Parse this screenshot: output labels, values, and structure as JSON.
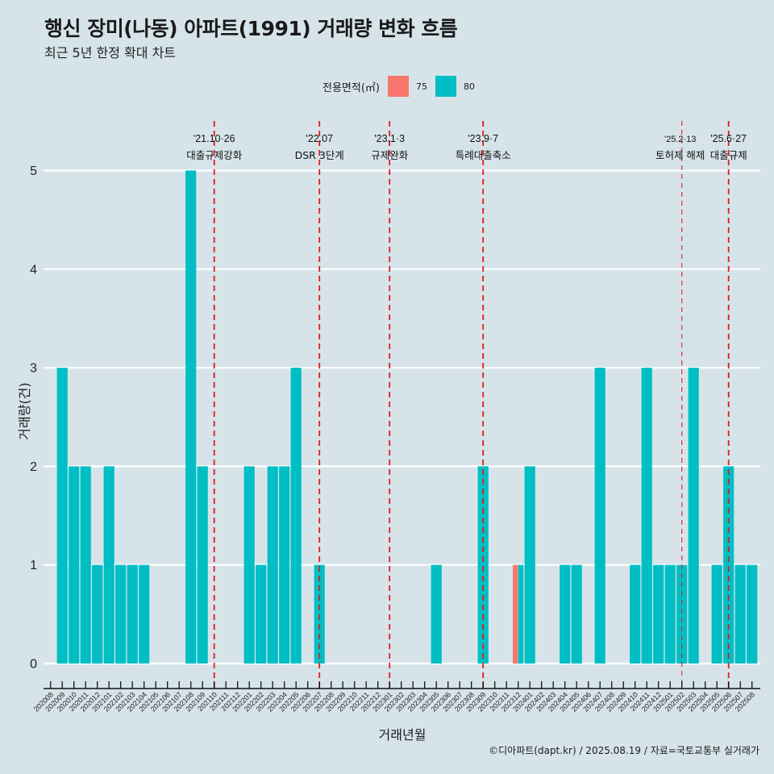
{
  "title": "행신 장미(나동) 아파트(1991) 거래량 변화 흐름",
  "subtitle": "최근 5년 한정 확대 차트",
  "caption": "©디아파트(dapt.kr) / 2025.08.19 / 자료=국토교통부 실거래가",
  "chart_data": {
    "type": "bar",
    "title": "행신 장미(나동) 아파트(1991) 거래량 변화 흐름",
    "xlabel": "거래년월",
    "ylabel": "거래량(건)",
    "ylim": [
      0,
      5
    ],
    "yticks": [
      "0",
      "1",
      "2",
      "3",
      "4",
      "5"
    ],
    "grid": true,
    "legend": {
      "title": "전용면적(㎡)",
      "placement": "top",
      "entries": [
        "75",
        "80"
      ]
    },
    "colors": {
      "75": "#f8766d",
      "80": "#00bfc4",
      "event_line": "#e41a1c"
    },
    "categories": [
      "202008",
      "202009",
      "202010",
      "202011",
      "202012",
      "202101",
      "202102",
      "202103",
      "202104",
      "202105",
      "202106",
      "202107",
      "202108",
      "202109",
      "202110",
      "202111",
      "202112",
      "202201",
      "202202",
      "202203",
      "202204",
      "202205",
      "202206",
      "202207",
      "202208",
      "202209",
      "202210",
      "202211",
      "202212",
      "202301",
      "202302",
      "202303",
      "202304",
      "202305",
      "202306",
      "202307",
      "202308",
      "202309",
      "202310",
      "202311",
      "202312",
      "202401",
      "202402",
      "202403",
      "202404",
      "202405",
      "202406",
      "202407",
      "202408",
      "202409",
      "202410",
      "202411",
      "202412",
      "202501",
      "202502",
      "202503",
      "202504",
      "202505",
      "202506",
      "202507",
      "202508"
    ],
    "series": [
      {
        "name": "75",
        "values": [
          0,
          0,
          0,
          0,
          0,
          0,
          0,
          0,
          0,
          0,
          0,
          0,
          0,
          0,
          0,
          0,
          0,
          0,
          0,
          0,
          0,
          0,
          0,
          0,
          0,
          0,
          0,
          0,
          0,
          0,
          0,
          0,
          0,
          0,
          0,
          0,
          0,
          0,
          0,
          0,
          1,
          0,
          0,
          0,
          0,
          0,
          0,
          0,
          0,
          0,
          0,
          0,
          0,
          0,
          0,
          0,
          0,
          0,
          0,
          0,
          0
        ]
      },
      {
        "name": "80",
        "values": [
          0,
          3,
          2,
          2,
          1,
          2,
          1,
          1,
          1,
          0,
          0,
          0,
          5,
          2,
          0,
          0,
          0,
          2,
          1,
          2,
          2,
          3,
          0,
          1,
          0,
          0,
          0,
          0,
          0,
          0,
          0,
          0,
          0,
          1,
          0,
          0,
          0,
          2,
          0,
          0,
          1,
          2,
          0,
          0,
          1,
          1,
          0,
          3,
          0,
          0,
          1,
          3,
          1,
          1,
          1,
          3,
          0,
          1,
          2,
          1,
          1
        ]
      }
    ],
    "annotations": [
      {
        "at": "202110",
        "date": "'21.10·26",
        "label": "대출규제강화",
        "style": "dashed"
      },
      {
        "at": "202207",
        "date": "'22.07",
        "label": "DSR 3단계",
        "style": "dashed"
      },
      {
        "at": "202301",
        "date": "'23.1·3",
        "label": "규제완화",
        "style": "dashed"
      },
      {
        "at": "202309",
        "date": "'23.9·7",
        "label": "특례대출축소",
        "style": "dashed"
      },
      {
        "at": "202502",
        "date": "'25.2·13",
        "label": "토허제 해제",
        "style": "dashed-thin"
      },
      {
        "at": "202506",
        "date": "'25.6·27",
        "label": "대출규제",
        "style": "dashed"
      }
    ]
  }
}
